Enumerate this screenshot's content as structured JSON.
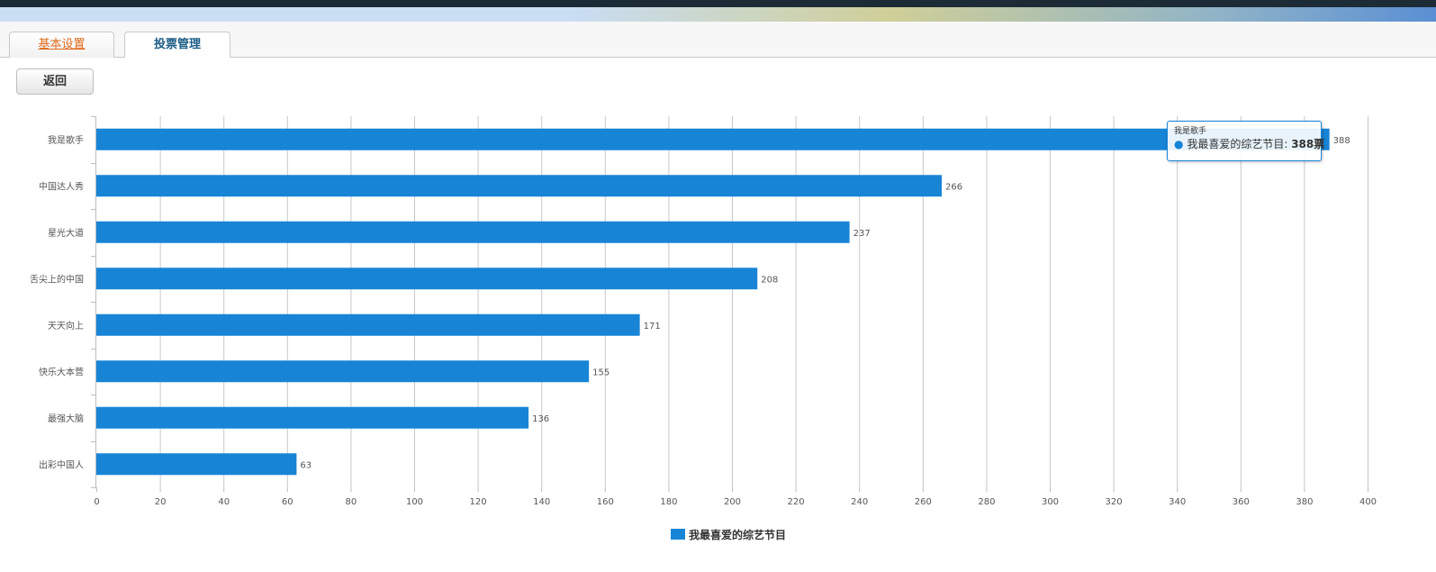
{
  "tabs": [
    {
      "label": "基本设置"
    },
    {
      "label": "投票管理"
    }
  ],
  "back_button": {
    "label": "返回"
  },
  "chart_data": {
    "type": "bar",
    "orientation": "horizontal",
    "categories": [
      "我是歌手",
      "中国达人秀",
      "星光大道",
      "舌尖上的中国",
      "天天向上",
      "快乐大本营",
      "最强大脑",
      "出彩中国人"
    ],
    "series": [
      {
        "name": "我最喜爱的综艺节目",
        "values": [
          388,
          266,
          237,
          208,
          171,
          155,
          136,
          63
        ],
        "color": "#1784d6"
      }
    ],
    "title": "",
    "xlabel": "",
    "ylabel": "",
    "xlim": [
      0,
      400
    ],
    "x_ticks": [
      "0",
      "20",
      "40",
      "60",
      "80",
      "100",
      "120",
      "140",
      "160",
      "180",
      "200",
      "220",
      "240",
      "260",
      "280",
      "300",
      "320",
      "340",
      "360",
      "380",
      "400"
    ],
    "grid": "vertical",
    "data_labels": true,
    "legend": "bottom-center"
  },
  "tooltip": {
    "category": "我是歌手",
    "series": "我最喜爱的综艺节目:",
    "value": "388票",
    "marker": "●"
  },
  "colors": {
    "bar": "#1784d6",
    "grid": "#c8c8c8",
    "tab_active_text": "#e06a1b",
    "tab_text": "#1b5c87"
  }
}
